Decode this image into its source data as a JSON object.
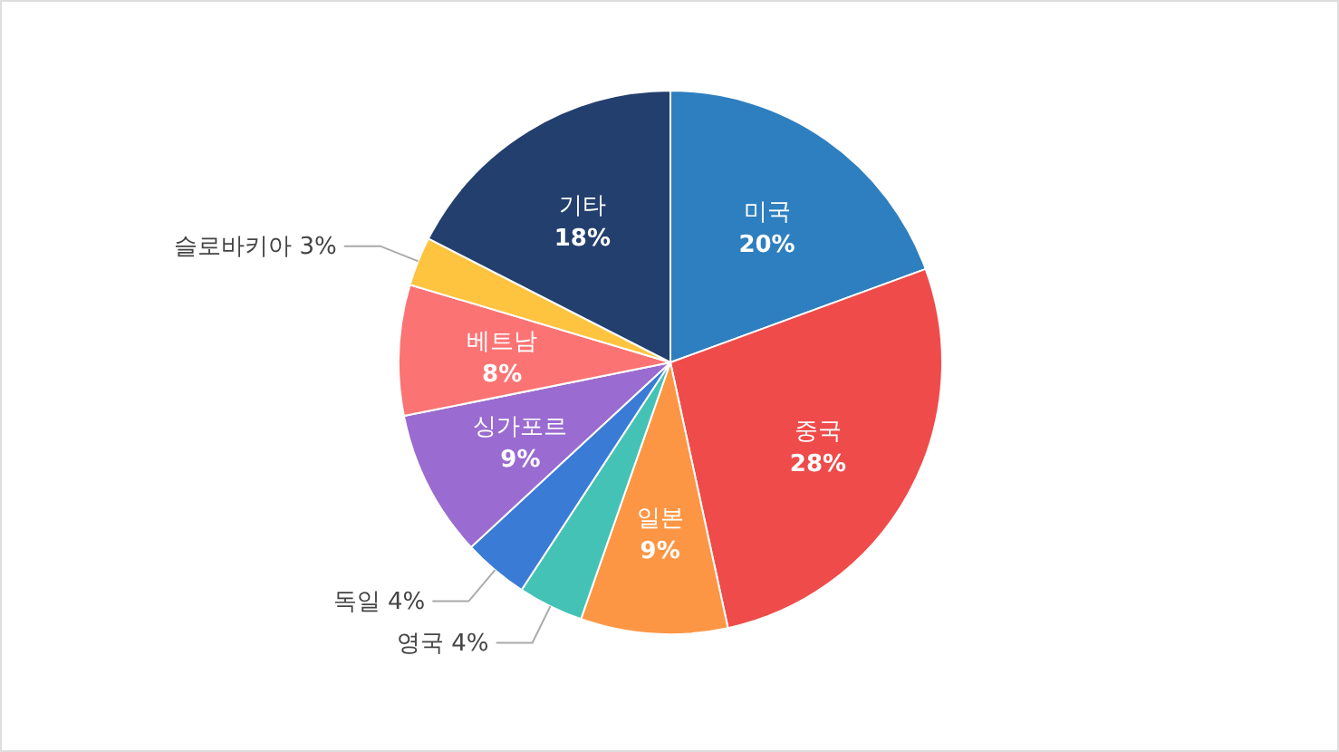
{
  "chart_data": {
    "type": "pie",
    "categories": [
      "미국",
      "중국",
      "일본",
      "영국",
      "독일",
      "싱가포르",
      "베트남",
      "슬로바키아",
      "기타"
    ],
    "values": [
      20,
      28,
      9,
      4,
      4,
      9,
      8,
      3,
      18
    ],
    "value_labels": [
      "20%",
      "28%",
      "9%",
      "4%",
      "4%",
      "9%",
      "8%",
      "3%",
      "18%"
    ],
    "colors": [
      "#2e7fbf",
      "#ef4b4b",
      "#fd9644",
      "#45c2b6",
      "#3a7bd5",
      "#9a6bd0",
      "#fc7373",
      "#fec43f",
      "#233f6e"
    ]
  }
}
